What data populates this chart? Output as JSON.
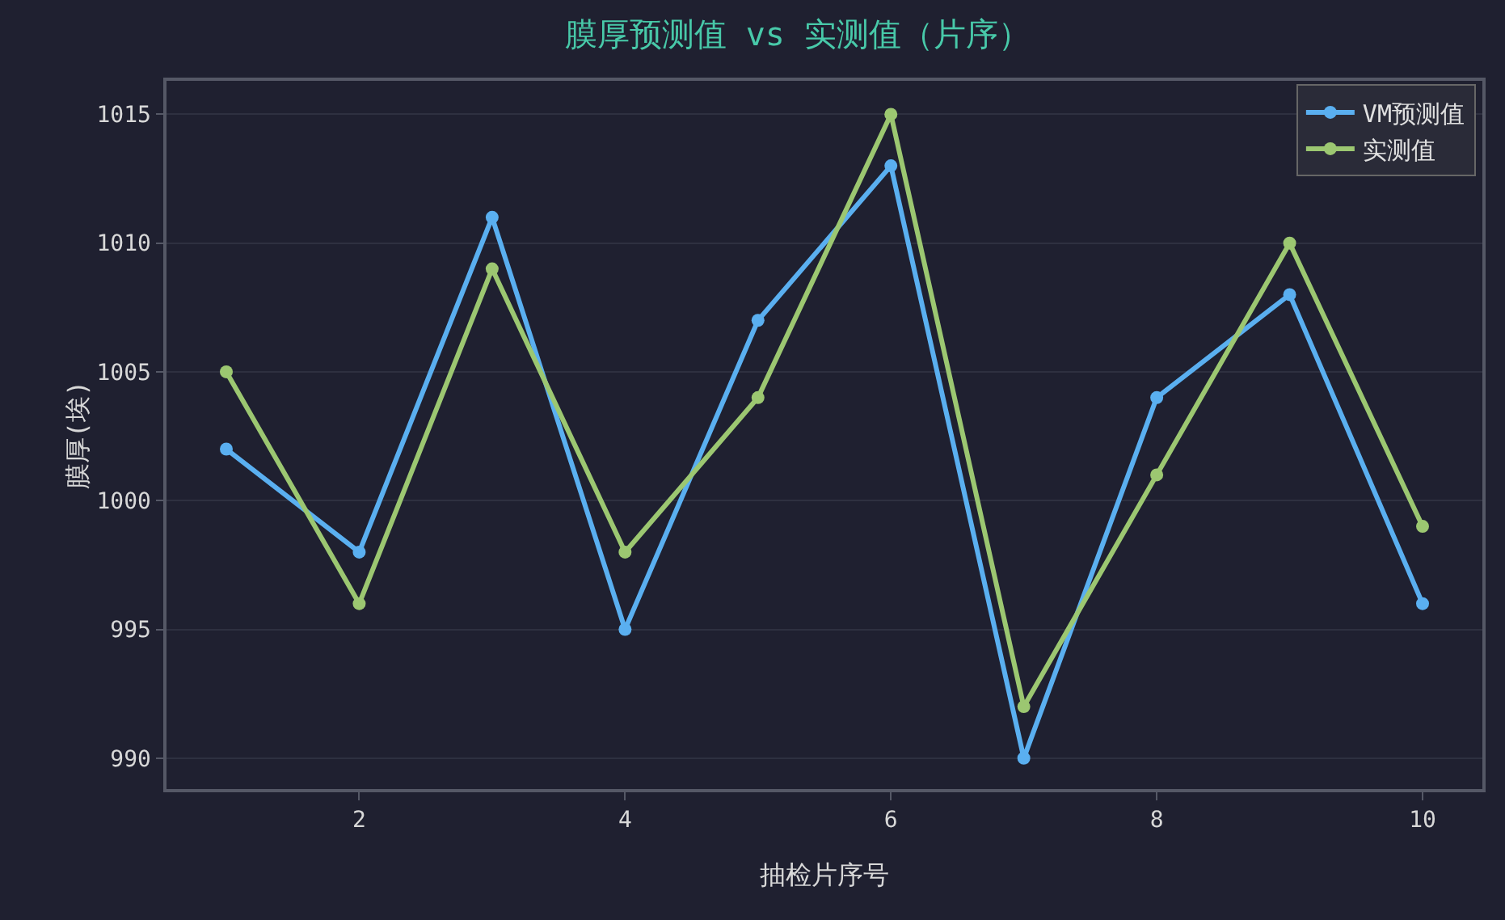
{
  "chart_data": {
    "type": "line",
    "title": "膜厚预测值 vs 实测值（片序）",
    "xlabel": "抽检片序号",
    "ylabel": "膜厚(埃)",
    "x": [
      1,
      2,
      3,
      4,
      5,
      6,
      7,
      8,
      9,
      10
    ],
    "series": [
      {
        "name": "VM预测值",
        "color": "#5aaff0",
        "values": [
          1002,
          998,
          1011,
          995,
          1007,
          1013,
          990,
          1004,
          1008,
          996
        ]
      },
      {
        "name": "实测值",
        "color": "#9cc771",
        "values": [
          1005,
          996,
          1009,
          998,
          1004,
          1015,
          992,
          1001,
          1010,
          999
        ]
      }
    ],
    "xlim": [
      0.55,
      10.45
    ],
    "xticks": [
      2,
      4,
      6,
      8,
      10
    ],
    "ylim": [
      988.8,
      1016.3
    ],
    "yticks": [
      990,
      995,
      1000,
      1005,
      1010,
      1015
    ],
    "grid": "y",
    "legend": "top right",
    "marker": "circle",
    "line_style": "solid"
  }
}
